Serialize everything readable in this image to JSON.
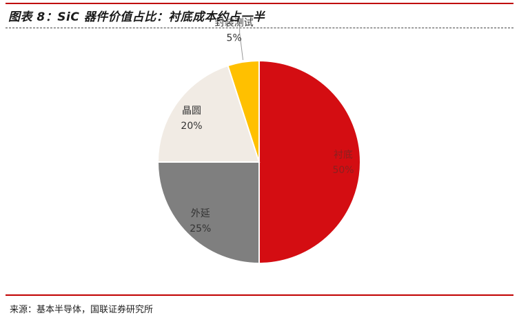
{
  "header": {
    "title": "图表 8：SiC 器件价值占比：衬底成本约占一半"
  },
  "footer": {
    "source": "来源：基本半导体，国联证券研究所"
  },
  "colors": {
    "accent_red": "#c00000"
  },
  "chart_data": {
    "type": "pie",
    "title": "",
    "start_angle_deg": 90,
    "direction": "clockwise",
    "legend": "none",
    "slices": [
      {
        "name": "衬底",
        "value": 50,
        "label": "50%",
        "color": "#d40d12",
        "label_color": "#8a2020"
      },
      {
        "name": "外延",
        "value": 25,
        "label": "25%",
        "color": "#7f7f7f",
        "label_color": "#333333"
      },
      {
        "name": "晶圆",
        "value": 20,
        "label": "20%",
        "color": "#f1ebe4",
        "label_color": "#333333"
      },
      {
        "name": "封装测试",
        "value": 5,
        "label": "5%",
        "color": "#ffc000",
        "label_color": "#333333"
      }
    ]
  }
}
